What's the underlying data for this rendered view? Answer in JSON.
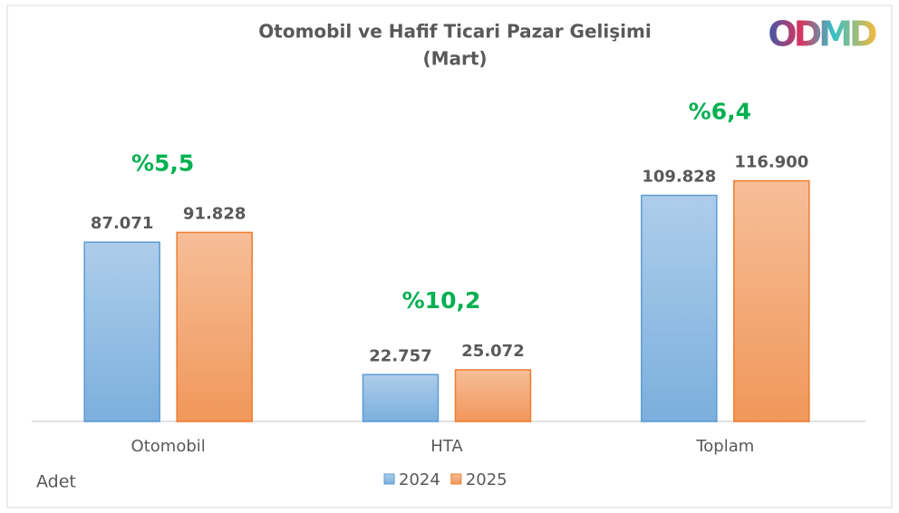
{
  "logo": "ODMD",
  "chart_data": {
    "type": "bar",
    "title": "Otomobil ve Hafif Ticari Pazar Gelişimi",
    "subtitle": "(Mart)",
    "y_axis_label": "Adet",
    "categories": [
      "Otomobil",
      "HTA",
      "Toplam"
    ],
    "series": [
      {
        "name": "2024",
        "color": "#5b9bd5",
        "values": [
          87071,
          22757,
          109828
        ],
        "value_labels": [
          "87.071",
          "22.757",
          "109.828"
        ]
      },
      {
        "name": "2025",
        "color": "#ed7d31",
        "values": [
          91828,
          25072,
          116900
        ],
        "value_labels": [
          "91.828",
          "25.072",
          "116.900"
        ]
      }
    ],
    "annotations": [
      "%5,5",
      "%10,2",
      "%6,4"
    ],
    "annotation_color": "#00b050",
    "ylim": [
      0,
      140000
    ],
    "grid": false,
    "legend": "bottom"
  }
}
